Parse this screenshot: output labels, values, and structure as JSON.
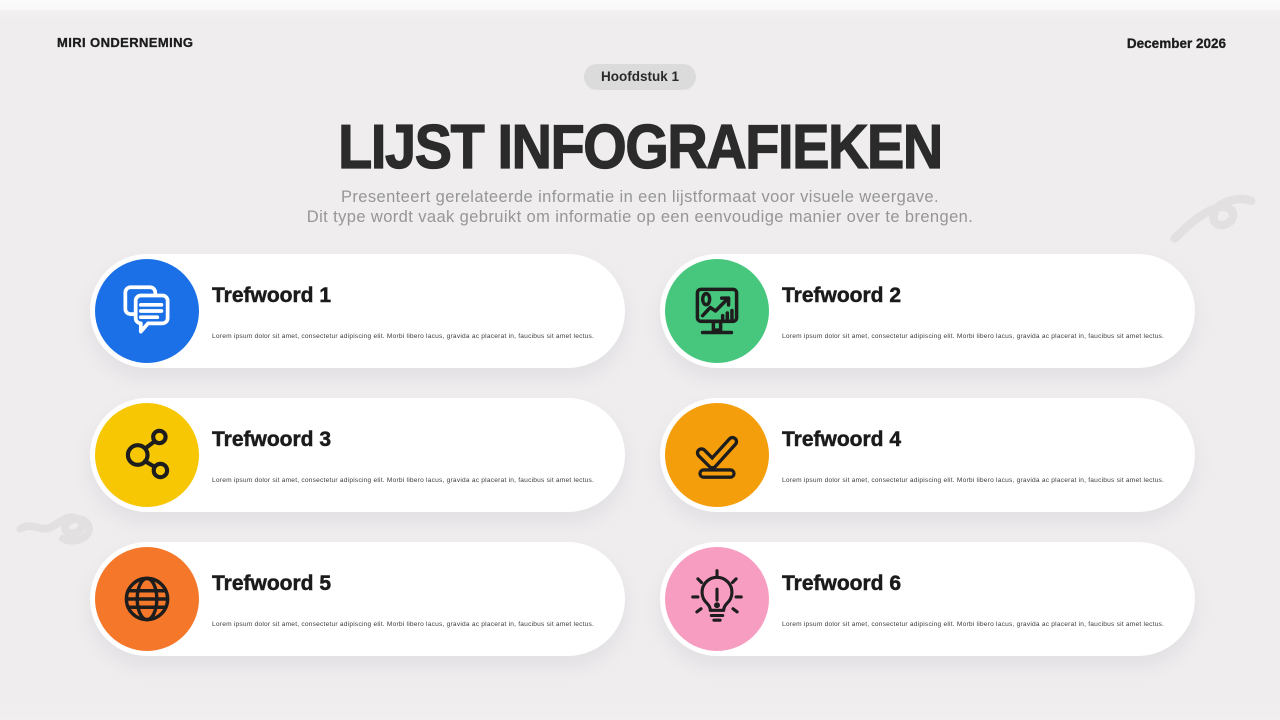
{
  "header": {
    "company": "MIRI ONDERNEMING",
    "date": "December 2026",
    "chapter_badge": "Hoofdstuk 1"
  },
  "hero": {
    "title": "LIJST INFOGRAFIEKEN",
    "subtitle_line1": "Presenteert gerelateerde informatie in een lijstformaat voor visuele weergave.",
    "subtitle_line2": "Dit type wordt vaak gebruikt om informatie op een eenvoudige manier over te brengen."
  },
  "items": [
    {
      "title": "Trefwoord 1",
      "description": "Lorem ipsum dolor sit amet, consectetur adipiscing elit. Morbi libero lacus, gravida ac placerat in, faucibus sit amet lectus.",
      "color": "#1b70e8",
      "icon": "chat-bubbles-icon"
    },
    {
      "title": "Trefwoord 2",
      "description": "Lorem ipsum dolor sit amet, consectetur adipiscing elit. Morbi libero lacus, gravida ac placerat in, faucibus sit amet lectus.",
      "color": "#47c77d",
      "icon": "presentation-chart-icon"
    },
    {
      "title": "Trefwoord 3",
      "description": "Lorem ipsum dolor sit amet, consectetur adipiscing elit. Morbi libero lacus, gravida ac placerat in, faucibus sit amet lectus.",
      "color": "#f6c702",
      "icon": "share-network-icon"
    },
    {
      "title": "Trefwoord 4",
      "description": "Lorem ipsum dolor sit amet, consectetur adipiscing elit. Morbi libero lacus, gravida ac placerat in, faucibus sit amet lectus.",
      "color": "#f59e0c",
      "icon": "checkmark-icon"
    },
    {
      "title": "Trefwoord 5",
      "description": "Lorem ipsum dolor sit amet, consectetur adipiscing elit. Morbi libero lacus, gravida ac placerat in, faucibus sit amet lectus.",
      "color": "#f5772a",
      "icon": "globe-icon"
    },
    {
      "title": "Trefwoord 6",
      "description": "Lorem ipsum dolor sit amet, consectetur adipiscing elit. Morbi libero lacus, gravida ac placerat in, faucibus sit amet lectus.",
      "color": "#f79dc1",
      "icon": "lightbulb-icon"
    }
  ],
  "colors": {
    "background": "#efedee",
    "card_background": "#ffffff",
    "badge_background": "#dcdbdb",
    "title_text": "#2b2b2b",
    "subtitle_text": "#969696",
    "icon_stroke": "#1d1d1d",
    "squiggle": "#e2e0e1"
  }
}
